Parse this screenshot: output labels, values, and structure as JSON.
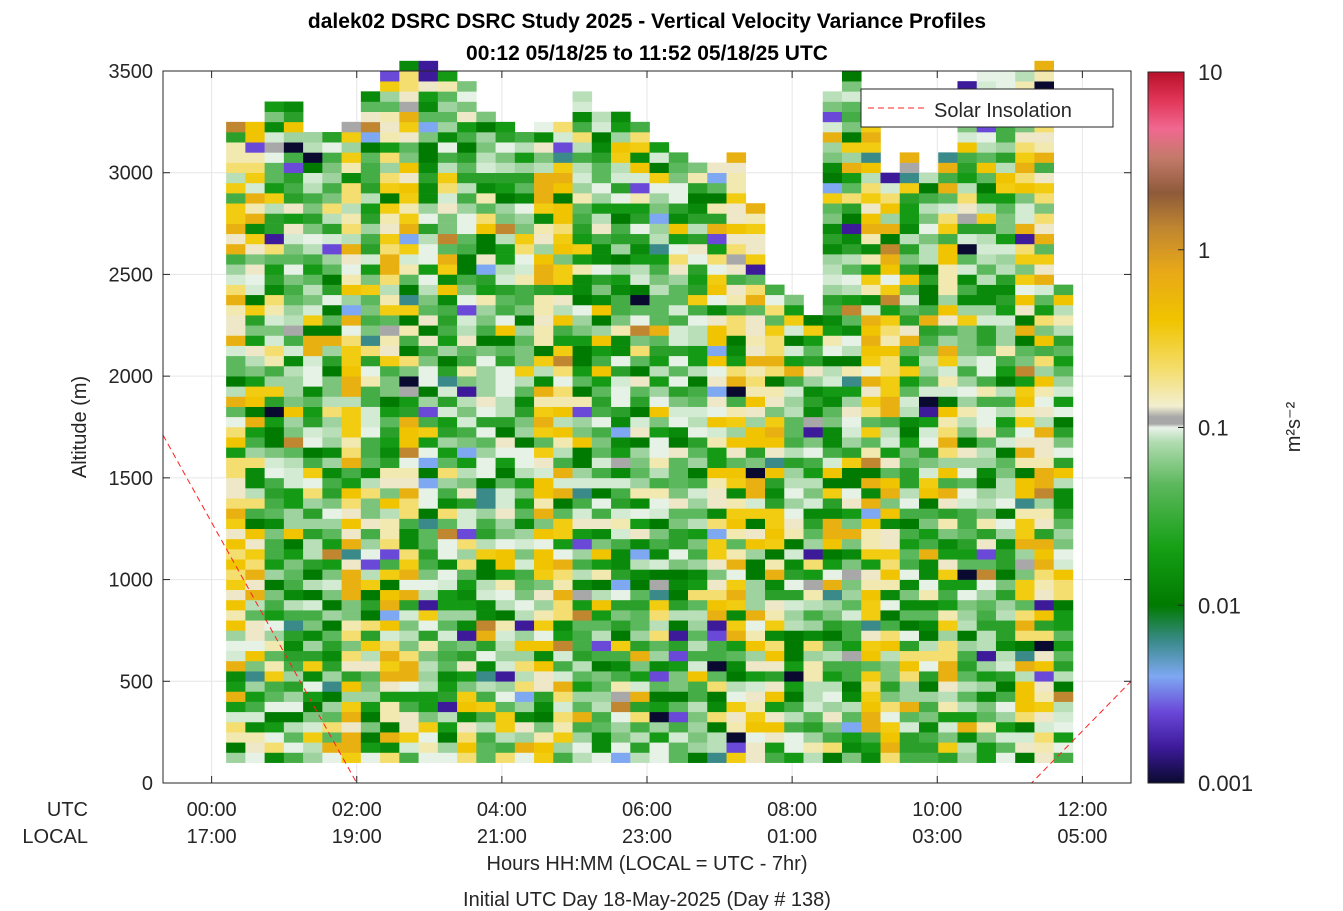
{
  "chart_data": {
    "type": "heatmap",
    "title": "dalek02 DSRC DSRC Study 2025 - Vertical Velocity Variance Profiles",
    "subtitle": "00:12 05/18/25 to 11:52 05/18/25  UTC",
    "ylabel": "Altitude (m)",
    "xlabel": "Hours HH:MM  (LOCAL = UTC - 7hr)",
    "xlabel2": "Initial UTC Day 18-May-2025 (Day # 138)",
    "row_labels": [
      "UTC",
      "LOCAL"
    ],
    "x_ticks_utc": [
      "00:00",
      "02:00",
      "04:00",
      "06:00",
      "08:00",
      "10:00",
      "12:00"
    ],
    "x_ticks_local": [
      "17:00",
      "19:00",
      "21:00",
      "23:00",
      "01:00",
      "03:00",
      "05:00"
    ],
    "x_tick_hours": [
      0,
      2,
      4,
      6,
      8,
      10,
      12
    ],
    "xlim_hours": [
      -0.67,
      12.67
    ],
    "y_ticks": [
      "0",
      "500",
      "1000",
      "1500",
      "2000",
      "2500",
      "3000",
      "3500"
    ],
    "ylim": [
      0,
      3500
    ],
    "colorbar": {
      "label": "m²s⁻²",
      "scale": "log",
      "range": [
        0.001,
        10
      ],
      "ticks": [
        "0.001",
        "0.01",
        "0.1",
        "1",
        "10"
      ]
    },
    "legend": {
      "entries": [
        "Solar Insolation"
      ],
      "placement": "top-right"
    },
    "grid": true,
    "time_range_utc_hours": [
      0.2,
      11.87
    ],
    "column_tops_m": [
      3250,
      3250,
      3350,
      3350,
      3200,
      3200,
      3250,
      3400,
      3500,
      3550,
      3550,
      3500,
      3450,
      3300,
      3250,
      3200,
      3250,
      3250,
      3400,
      3300,
      3300,
      3250,
      3150,
      3100,
      3050,
      3050,
      3100,
      2850,
      2450,
      2400,
      2300,
      3400,
      3500,
      3400,
      3000,
      3100,
      3000,
      3100,
      3450,
      3500,
      3500,
      3500,
      3550,
      2450
    ],
    "solar_insolation_polyline_hours_m": [
      [
        -0.67,
        1710
      ],
      [
        2.0,
        0
      ],
      [
        11.3,
        0
      ],
      [
        12.67,
        500
      ]
    ]
  }
}
